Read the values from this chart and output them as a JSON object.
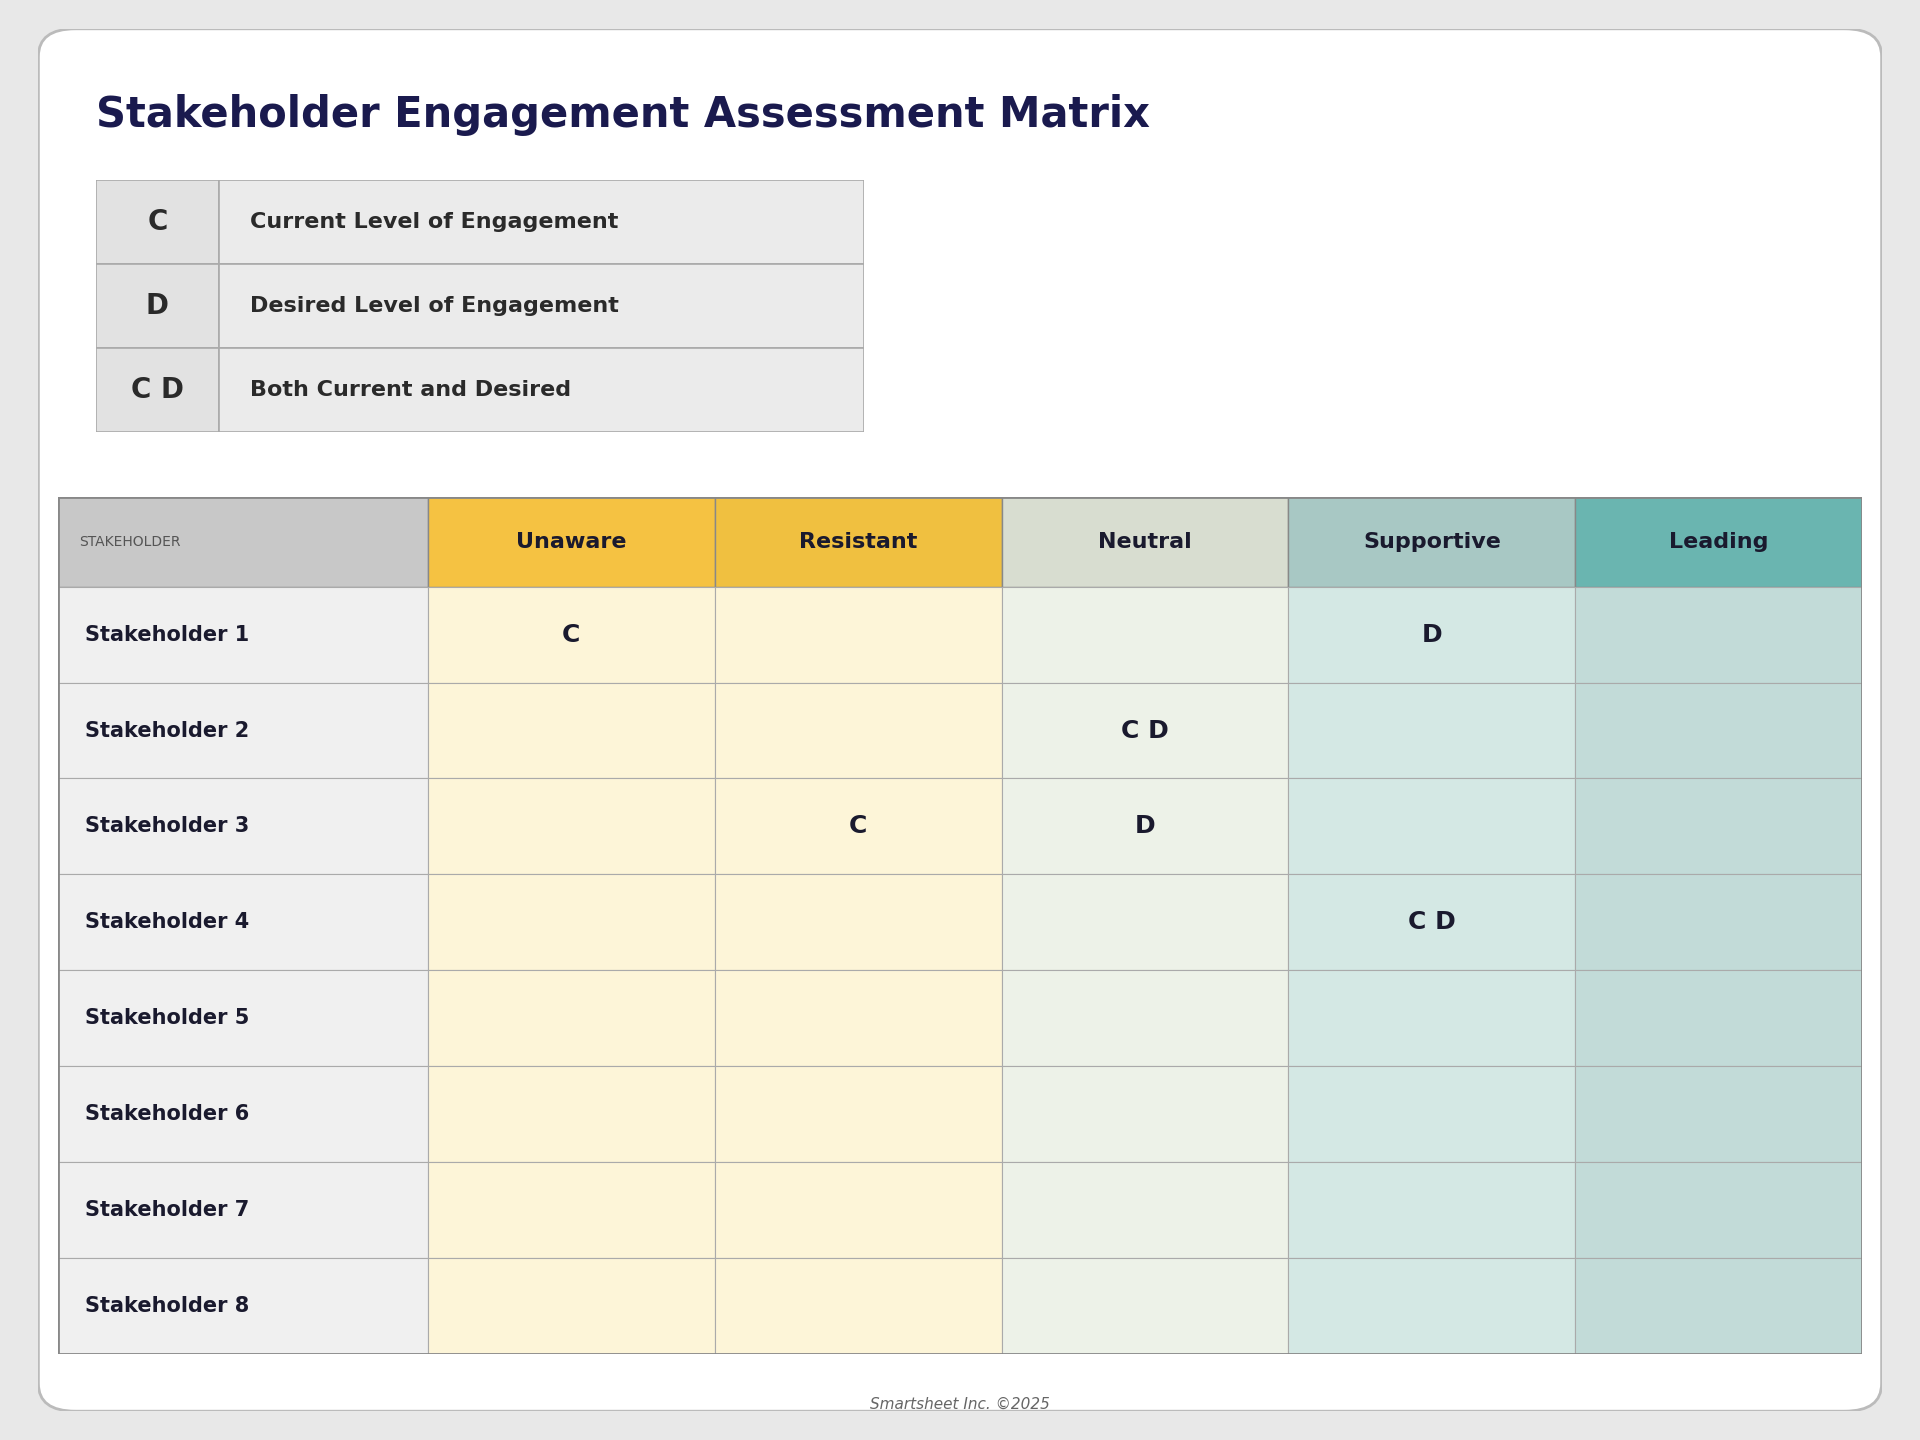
{
  "title": "Stakeholder Engagement Assessment Matrix",
  "legend_items": [
    {
      "symbol": "C",
      "description": "Current Level of Engagement"
    },
    {
      "symbol": "D",
      "description": "Desired Level of Engagement"
    },
    {
      "symbol": "C D",
      "description": "Both Current and Desired"
    }
  ],
  "col_headers": [
    "STAKEHOLDER",
    "Unaware",
    "Resistant",
    "Neutral",
    "Supportive",
    "Leading"
  ],
  "col_header_colors": [
    "#c8c8c8",
    "#f5c242",
    "#f0c040",
    "#d8ddd0",
    "#a8c8c4",
    "#6ab5b0"
  ],
  "stakeholders": [
    "Stakeholder 1",
    "Stakeholder 2",
    "Stakeholder 3",
    "Stakeholder 4",
    "Stakeholder 5",
    "Stakeholder 6",
    "Stakeholder 7",
    "Stakeholder 8"
  ],
  "cell_data": [
    [
      "",
      "C",
      "",
      "",
      "D",
      ""
    ],
    [
      "",
      "",
      "",
      "C D",
      "",
      ""
    ],
    [
      "",
      "",
      "C",
      "D",
      "",
      ""
    ],
    [
      "",
      "",
      "",
      "",
      "C D",
      ""
    ],
    [
      "",
      "",
      "",
      "",
      "",
      ""
    ],
    [
      "",
      "",
      "",
      "",
      "",
      ""
    ],
    [
      "",
      "",
      "",
      "",
      "",
      ""
    ],
    [
      "",
      "",
      "",
      "",
      "",
      ""
    ]
  ],
  "col_bg_colors": [
    "#f0f0f0",
    "#fdf5d8",
    "#fdf5d8",
    "#edf2e8",
    "#d4e8e4",
    "#c2dbd8"
  ],
  "stakeholder_col_bg": "#f0f0f0",
  "footer_text": "Smartsheet Inc. ©2025",
  "background_color": "#ffffff",
  "page_bg_color": "#e8e8e8",
  "outer_border_color": "#bbbbbb",
  "title_color": "#1a1a4e",
  "title_fontsize": 30,
  "header_fontsize": 16,
  "cell_fontsize": 18,
  "legend_fontsize": 15,
  "stakeholder_fontsize": 15,
  "legend_symbol_color": "#2a2a2a",
  "legend_desc_color": "#2a2a2a",
  "table_text_color": "#1a1a2e",
  "footer_color": "#666666"
}
